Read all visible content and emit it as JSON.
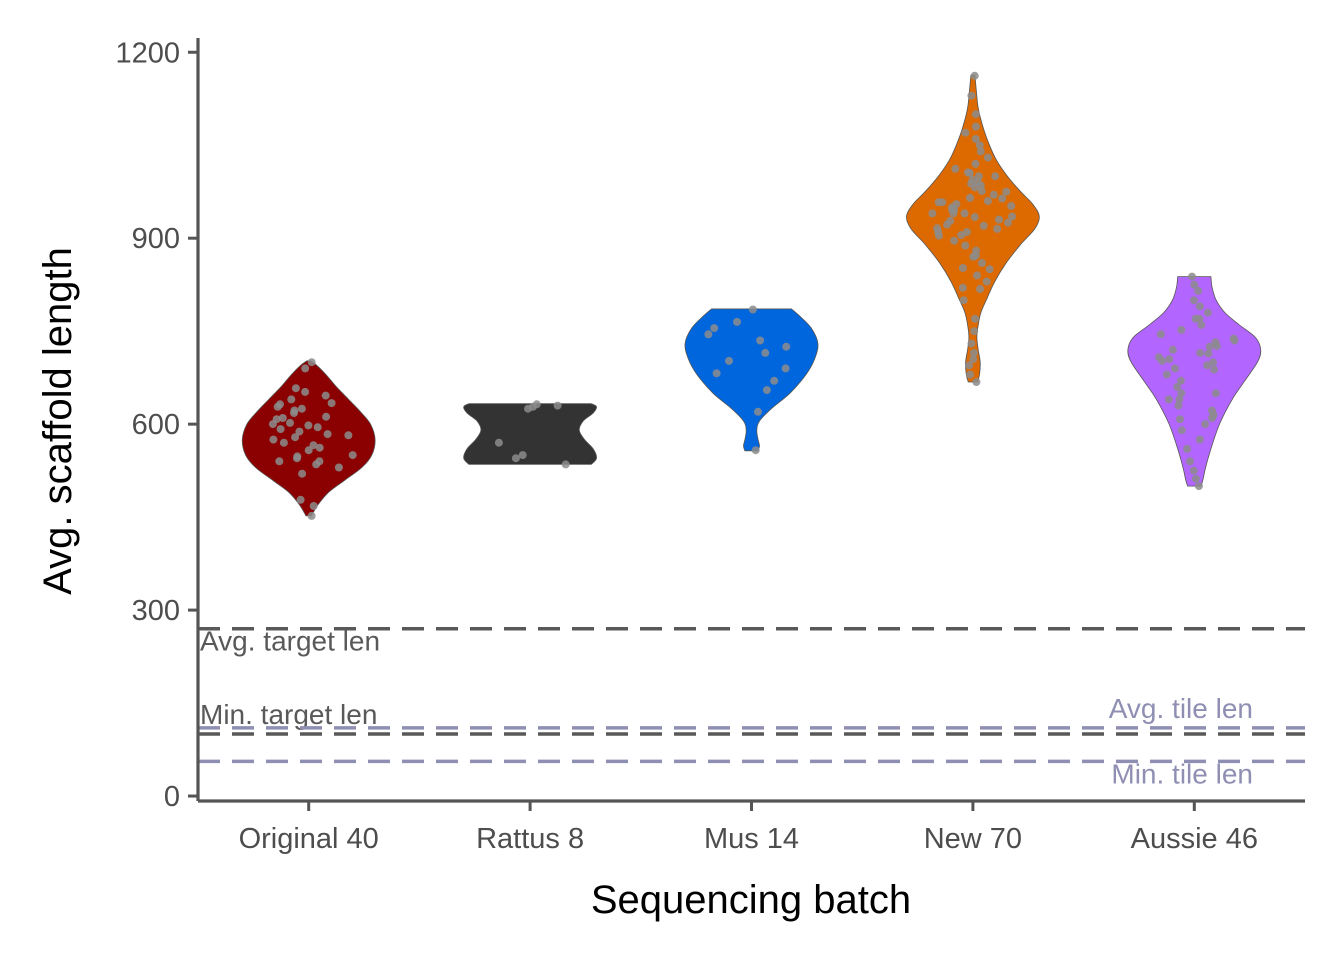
{
  "chart_data": {
    "type": "violin",
    "title": "",
    "xlabel": "Sequencing batch",
    "ylabel": "Avg. scaffold length",
    "ylim": [
      -8,
      1223
    ],
    "yticks": [
      0,
      300,
      600,
      900,
      1200
    ],
    "ytick_labels": [
      "0",
      "300",
      "600",
      "900",
      "1200"
    ],
    "grid": false,
    "legend": "none",
    "categories": [
      "Original 40",
      "Rattus 8",
      "Mus 14",
      "New 70",
      "Aussie 46"
    ],
    "series": [
      {
        "category": "Original 40",
        "color": "#8b0000",
        "points": [
          452,
          468,
          478,
          520,
          530,
          540,
          548,
          558,
          562,
          570,
          575,
          582,
          588,
          592,
          598,
          602,
          608,
          612,
          618,
          622,
          628,
          634,
          640,
          646,
          652,
          658,
          566,
          579,
          584,
          595,
          600,
          610,
          625,
          632,
          550,
          545,
          540,
          535,
          700,
          690
        ],
        "density": [
          [
            452,
            0.04
          ],
          [
            470,
            0.14
          ],
          [
            490,
            0.3
          ],
          [
            510,
            0.55
          ],
          [
            530,
            0.8
          ],
          [
            550,
            0.95
          ],
          [
            575,
            1.0
          ],
          [
            600,
            0.93
          ],
          [
            620,
            0.78
          ],
          [
            640,
            0.6
          ],
          [
            660,
            0.42
          ],
          [
            680,
            0.26
          ],
          [
            695,
            0.12
          ],
          [
            702,
            0.03
          ]
        ]
      },
      {
        "category": "Rattus 8",
        "color": "#333333",
        "points": [
          535,
          545,
          550,
          570,
          625,
          628,
          630,
          632
        ],
        "density": [
          [
            535,
            0.92
          ],
          [
            545,
            1.0
          ],
          [
            560,
            0.95
          ],
          [
            575,
            0.82
          ],
          [
            590,
            0.74
          ],
          [
            605,
            0.8
          ],
          [
            618,
            0.95
          ],
          [
            628,
            1.0
          ],
          [
            633,
            0.92
          ]
        ]
      },
      {
        "category": "Mus 14",
        "color": "#0066dd",
        "points": [
          558,
          620,
          655,
          670,
          682,
          690,
          702,
          715,
          725,
          735,
          745,
          755,
          765,
          785
        ],
        "density": [
          [
            557,
            0.1
          ],
          [
            565,
            0.12
          ],
          [
            575,
            0.1
          ],
          [
            590,
            0.08
          ],
          [
            605,
            0.12
          ],
          [
            625,
            0.3
          ],
          [
            650,
            0.58
          ],
          [
            680,
            0.82
          ],
          [
            705,
            0.95
          ],
          [
            730,
            1.0
          ],
          [
            755,
            0.9
          ],
          [
            775,
            0.72
          ],
          [
            786,
            0.6
          ]
        ]
      },
      {
        "category": "New 70",
        "color": "#dd6a00",
        "points": [
          668,
          680,
          695,
          705,
          715,
          730,
          750,
          770,
          800,
          818,
          830,
          840,
          852,
          860,
          872,
          880,
          888,
          896,
          904,
          910,
          916,
          922,
          928,
          934,
          940,
          946,
          952,
          958,
          964,
          970,
          976,
          982,
          988,
          994,
          1000,
          1006,
          1012,
          1020,
          1030,
          1040,
          1050,
          1060,
          1070,
          1080,
          1100,
          1130,
          1162,
          925,
          935,
          945,
          955,
          905,
          915,
          965,
          975,
          985,
          930,
          940,
          950,
          960,
          920,
          910,
          990,
          1005,
          870,
          850,
          820,
          1000,
          940,
          958
        ],
        "density": [
          [
            668,
            0.07
          ],
          [
            680,
            0.1
          ],
          [
            700,
            0.11
          ],
          [
            720,
            0.08
          ],
          [
            740,
            0.06
          ],
          [
            760,
            0.08
          ],
          [
            780,
            0.12
          ],
          [
            800,
            0.2
          ],
          [
            830,
            0.33
          ],
          [
            860,
            0.5
          ],
          [
            890,
            0.72
          ],
          [
            915,
            0.93
          ],
          [
            935,
            1.0
          ],
          [
            955,
            0.9
          ],
          [
            975,
            0.72
          ],
          [
            1000,
            0.52
          ],
          [
            1025,
            0.36
          ],
          [
            1050,
            0.25
          ],
          [
            1080,
            0.15
          ],
          [
            1110,
            0.08
          ],
          [
            1140,
            0.05
          ],
          [
            1163,
            0.03
          ]
        ]
      },
      {
        "category": "Aussie 46",
        "color": "#b266ff",
        "points": [
          500,
          512,
          525,
          540,
          560,
          575,
          590,
          600,
          608,
          615,
          622,
          630,
          640,
          650,
          660,
          670,
          680,
          688,
          695,
          702,
          708,
          714,
          720,
          726,
          732,
          738,
          745,
          752,
          760,
          770,
          780,
          790,
          800,
          815,
          825,
          838,
          705,
          715,
          725,
          735,
          690,
          700,
          650,
          640,
          610,
          770
        ],
        "density": [
          [
            500,
            0.1
          ],
          [
            510,
            0.13
          ],
          [
            530,
            0.17
          ],
          [
            560,
            0.25
          ],
          [
            600,
            0.38
          ],
          [
            640,
            0.57
          ],
          [
            670,
            0.76
          ],
          [
            700,
            0.95
          ],
          [
            720,
            1.0
          ],
          [
            740,
            0.92
          ],
          [
            760,
            0.68
          ],
          [
            780,
            0.46
          ],
          [
            800,
            0.33
          ],
          [
            820,
            0.27
          ],
          [
            838,
            0.25
          ]
        ]
      }
    ],
    "reference_lines": [
      {
        "label": "Avg. target len",
        "value": 270,
        "color": "#595959",
        "label_position": "left-below"
      },
      {
        "label": "Min. target len",
        "value": 100,
        "color": "#595959",
        "label_position": "left-above"
      },
      {
        "label": "Avg. tile len",
        "value": 110,
        "color": "#8f8fb3",
        "label_position": "right-above"
      },
      {
        "label": "Min. tile len",
        "value": 56,
        "color": "#8f8fb3",
        "label_position": "right-below"
      }
    ]
  }
}
